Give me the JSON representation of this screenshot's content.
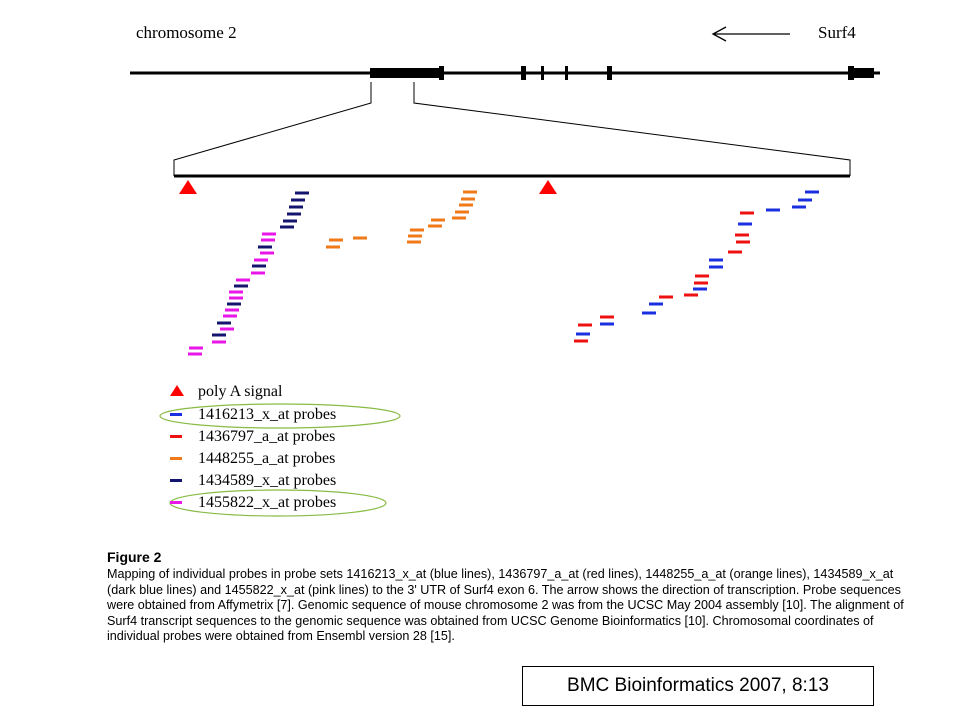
{
  "header": {
    "chromosome_label": "chromosome 2",
    "gene_label": "Surf4",
    "arrow_direction": "left"
  },
  "legend": {
    "items": [
      {
        "label": "poly A signal",
        "marker": "triangle",
        "color": "#ff0000"
      },
      {
        "label": "1416213_x_at probes",
        "marker": "dash",
        "color": "#1a2fe0",
        "circled": true
      },
      {
        "label": "1436797_a_at probes",
        "marker": "dash",
        "color": "#ee1111"
      },
      {
        "label": "1448255_a_at probes",
        "marker": "dash",
        "color": "#f07a18"
      },
      {
        "label": "1434589_x_at probes",
        "marker": "dash",
        "color": "#14146e"
      },
      {
        "label": "1455822_x_at probes",
        "marker": "dash",
        "color": "#e817e8",
        "circled": true
      }
    ]
  },
  "caption": {
    "title": "Figure 2",
    "text": "Mapping of individual probes in probe sets 1416213_x_at (blue lines), 1436797_a_at (red lines), 1448255_a_at (orange lines), 1434589_x_at (dark blue lines) and 1455822_x_at (pink lines) to the 3' UTR of Surf4 exon 6. The arrow shows the direction of transcription. Probe sequences were obtained from Affymetrix [7]. Genomic sequence of mouse chromosome 2 was from the UCSC May 2004 assembly [10]. The alignment of Surf4 transcript sequences to the genomic sequence was obtained from UCSC Genome Bioinformatics [10]. Chromosomal coordinates of individual probes were obtained from Ensembl version 28 [15]."
  },
  "citation": "BMC Bioinformatics 2007, 8:13",
  "colors": {
    "blue": "#1a2fe0",
    "red": "#ee1111",
    "orange": "#f07a18",
    "dark_blue": "#14146e",
    "pink": "#e817e8",
    "circle": "#88bb44"
  }
}
